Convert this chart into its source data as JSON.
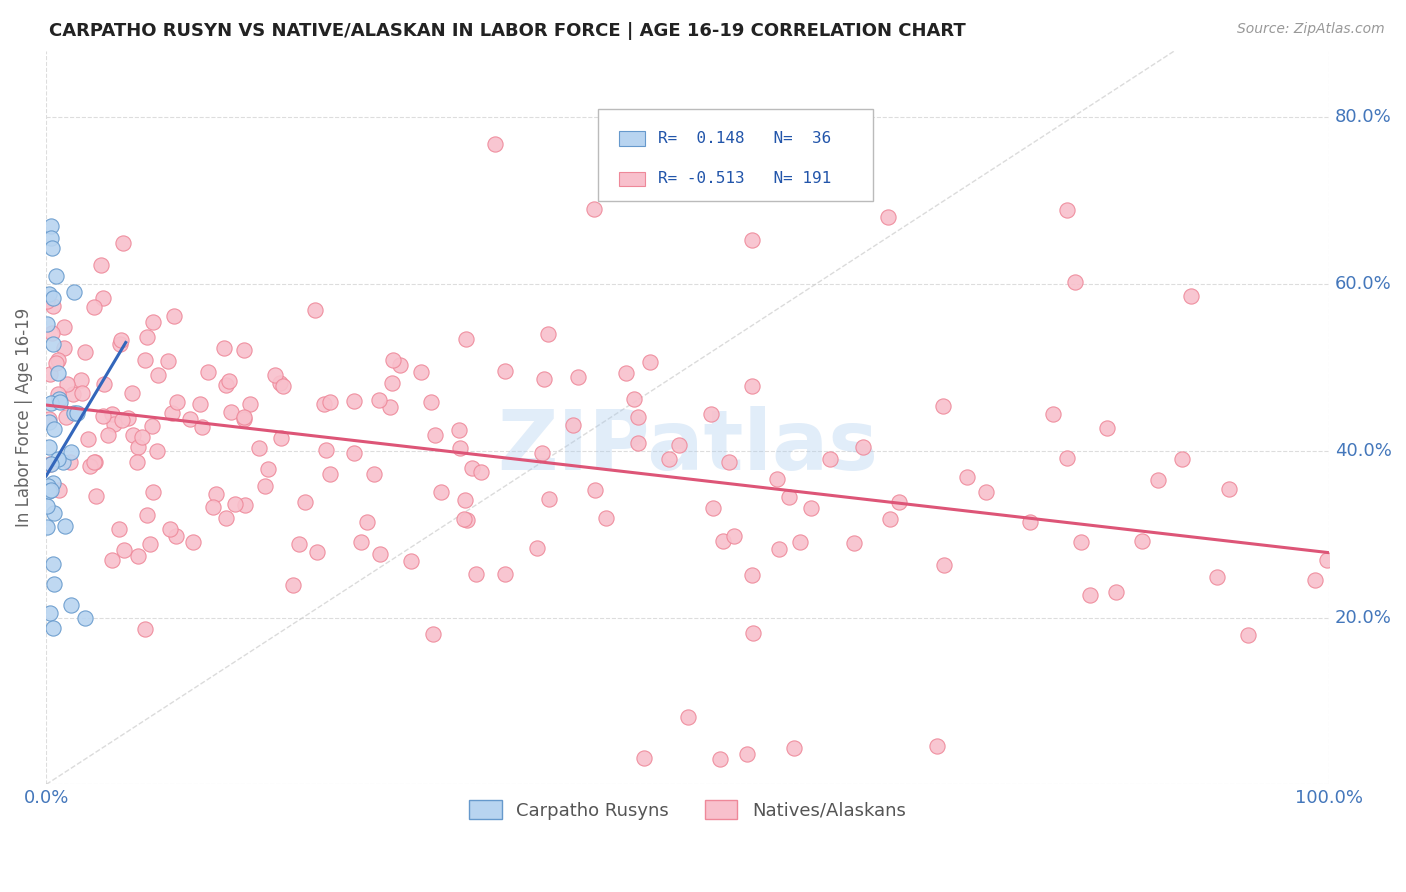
{
  "title": "CARPATHO RUSYN VS NATIVE/ALASKAN IN LABOR FORCE | AGE 16-19 CORRELATION CHART",
  "source": "Source: ZipAtlas.com",
  "ylabel": "In Labor Force | Age 16-19",
  "legend_label1": "Carpatho Rusyns",
  "legend_label2": "Natives/Alaskans",
  "R1": 0.148,
  "N1": 36,
  "R2": -0.513,
  "N2": 191,
  "color_blue_fill": "#b8d4f0",
  "color_blue_edge": "#6699cc",
  "color_blue_line": "#3366bb",
  "color_pink_fill": "#f8c0cc",
  "color_pink_edge": "#ee8899",
  "color_pink_line": "#dd5577",
  "color_diag": "#cccccc",
  "background": "#ffffff",
  "watermark": "ZIPatlas",
  "xlim": [
    0.0,
    1.0
  ],
  "ylim": [
    0.0,
    0.88
  ],
  "yticks": [
    0.0,
    0.2,
    0.4,
    0.6,
    0.8
  ],
  "ytick_labels_right": [
    "",
    "20.0%",
    "40.0%",
    "60.0%",
    "80.0%"
  ],
  "xtick_labels": [
    "0.0%",
    "100.0%"
  ],
  "pink_line_start_y": 0.455,
  "pink_line_end_y": 0.278,
  "blue_line_start_x": 0.0,
  "blue_line_start_y": 0.37,
  "blue_line_end_x": 0.062,
  "blue_line_end_y": 0.53
}
